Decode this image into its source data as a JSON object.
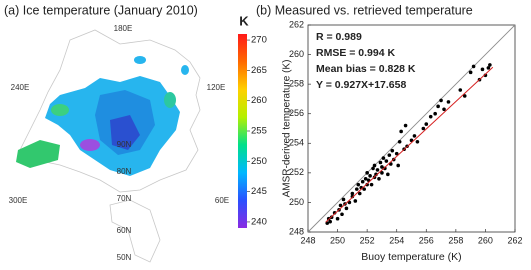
{
  "chart_data": [
    {
      "type": "map",
      "title": "(a) Ice temperature (January 2010)",
      "lon_labels": [
        "180E",
        "240E",
        "120E",
        "300E",
        "60E"
      ],
      "lat_labels": [
        "90N",
        "80N",
        "70N",
        "60N",
        "50N"
      ],
      "colorbar": {
        "label": "K",
        "lim": [
          239,
          271
        ],
        "ticks": [
          240,
          245,
          250,
          255,
          260,
          265,
          270
        ],
        "colors": [
          "#8a2be2",
          "#2a50ff",
          "#00b8ff",
          "#00e08a",
          "#b4f000",
          "#ffd000",
          "#ff6a00",
          "#ff1a1a"
        ]
      }
    },
    {
      "type": "scatter",
      "title": "(b) Measured vs. retrieved temperature",
      "x_label": "Buoy temperature (K)",
      "y_label": "AMSR-derived temperature (K)",
      "xlim": [
        248,
        262
      ],
      "ylim": [
        248,
        262
      ],
      "xticks": [
        248,
        250,
        252,
        254,
        256,
        258,
        260,
        262
      ],
      "yticks": [
        248,
        250,
        252,
        254,
        256,
        258,
        260,
        262
      ],
      "annotations": [
        "R = 0.989",
        "RMSE = 0.994 K",
        "Mean bias = 0.828 K",
        "Y = 0.927X+17.658"
      ],
      "points": {
        "color": "#000000",
        "x": [
          249.3,
          249.4,
          249.5,
          249.6,
          249.8,
          250.0,
          250.1,
          250.2,
          250.3,
          250.4,
          250.5,
          250.6,
          250.8,
          251.0,
          251.0,
          251.2,
          251.3,
          251.4,
          251.5,
          251.6,
          251.7,
          251.8,
          251.9,
          252.0,
          252.0,
          252.1,
          252.2,
          252.3,
          252.4,
          252.5,
          252.5,
          252.6,
          252.7,
          252.8,
          252.9,
          253.0,
          253.0,
          253.1,
          253.2,
          253.3,
          253.4,
          253.5,
          253.6,
          253.7,
          253.8,
          254.0,
          254.1,
          254.2,
          254.3,
          254.5,
          254.7,
          255.0,
          255.2,
          255.4,
          255.8,
          256.0,
          256.3,
          256.6,
          256.8,
          257.0,
          257.2,
          257.5,
          258.3,
          258.6,
          259.0,
          259.2,
          259.6,
          259.8,
          260.0,
          260.2,
          260.3,
          254.6
        ],
        "y": [
          248.6,
          248.9,
          248.7,
          249.0,
          249.3,
          248.9,
          249.5,
          249.8,
          249.2,
          250.2,
          249.9,
          249.6,
          250.0,
          250.4,
          250.6,
          250.1,
          250.9,
          251.2,
          250.6,
          251.0,
          251.4,
          250.9,
          251.6,
          251.2,
          252.0,
          251.5,
          251.8,
          251.2,
          252.3,
          251.7,
          252.5,
          251.9,
          252.2,
          251.6,
          252.7,
          252.0,
          252.4,
          253.0,
          252.3,
          252.8,
          251.9,
          253.2,
          252.6,
          253.5,
          252.9,
          253.3,
          252.5,
          254.1,
          254.8,
          253.6,
          253.8,
          254.2,
          254.5,
          254.1,
          255.0,
          255.3,
          255.8,
          256.0,
          256.5,
          256.9,
          256.3,
          256.8,
          257.6,
          257.2,
          258.8,
          259.2,
          258.3,
          259.0,
          258.6,
          259.1,
          259.3,
          255.2
        ]
      },
      "reference_line": {
        "color": "#8c8c8c",
        "x": [
          248,
          262
        ],
        "y": [
          248,
          262
        ]
      },
      "fit_line": {
        "color": "#d62020",
        "x": [
          249.2,
          260.5
        ],
        "y": [
          248.67,
          259.14
        ]
      }
    }
  ]
}
